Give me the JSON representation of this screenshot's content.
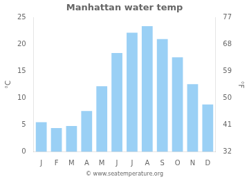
{
  "chart_data": {
    "type": "bar",
    "title": "Manhattan water temp",
    "categories": [
      "J",
      "F",
      "M",
      "A",
      "M",
      "J",
      "J",
      "A",
      "S",
      "O",
      "N",
      "D"
    ],
    "values": [
      5.5,
      4.4,
      4.8,
      7.6,
      12.2,
      18.4,
      22.2,
      23.4,
      21.0,
      17.6,
      12.6,
      8.8
    ],
    "ylabel": "°C",
    "y2label": "°F",
    "ylim": [
      0,
      25
    ],
    "yticks": [
      0,
      5,
      10,
      15,
      20,
      25
    ],
    "y2lim": [
      32,
      77
    ],
    "y2ticks": [
      32,
      41,
      50,
      59,
      68,
      77
    ],
    "grid": false,
    "annotations": [
      "© www.seatemperature.org"
    ]
  }
}
